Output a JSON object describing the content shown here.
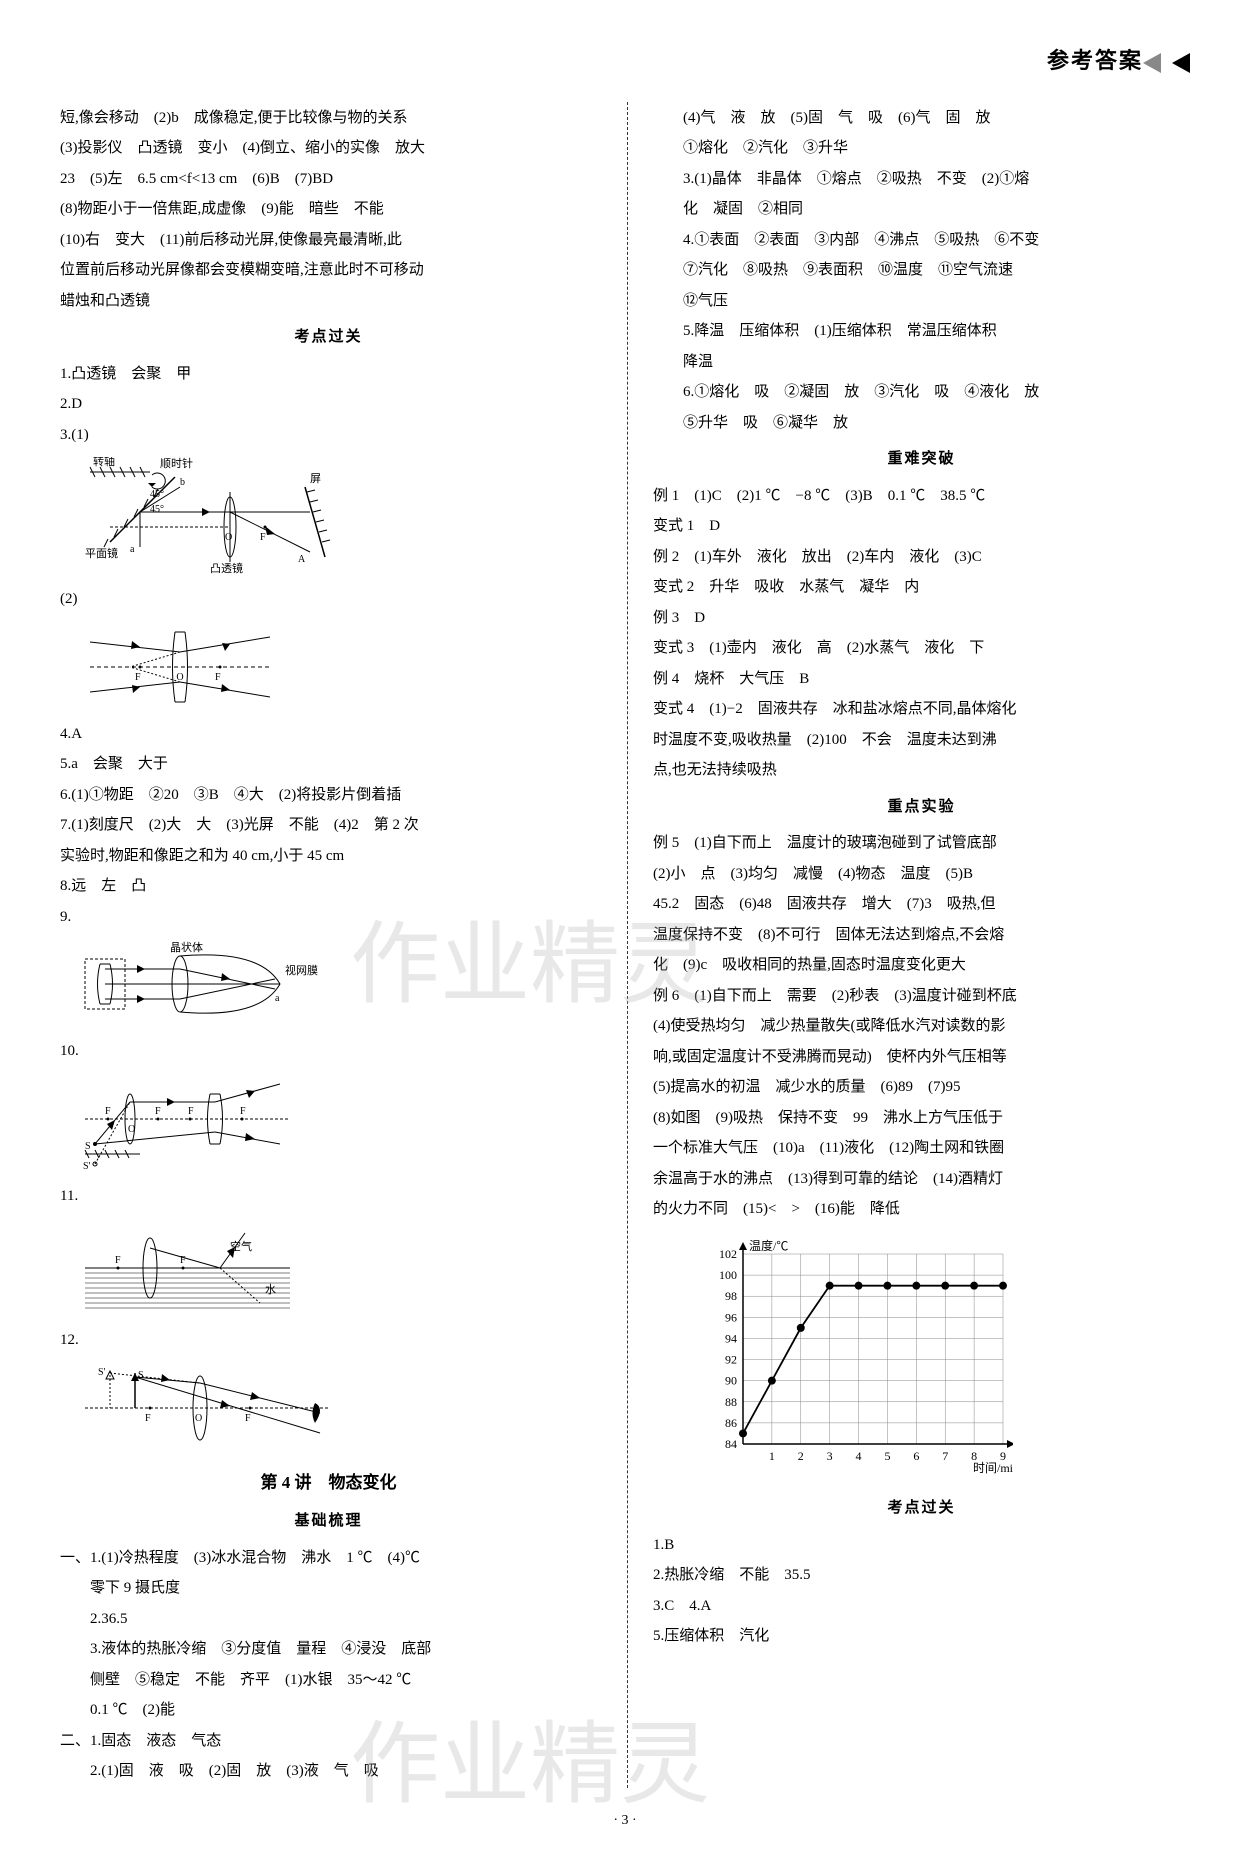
{
  "header": {
    "title": "参考答案"
  },
  "left": {
    "intro": [
      "短,像会移动　(2)b　成像稳定,便于比较像与物的关系",
      "(3)投影仪　凸透镜　变小　(4)倒立、缩小的实像　放大",
      "23　(5)左　6.5 cm<f<13 cm　(6)B　(7)BD",
      "(8)物距小于一倍焦距,成虚像　(9)能　暗些　不能",
      "(10)右　变大　(11)前后移动光屏,使像最亮最清晰,此",
      "位置前后移动光屏像都会变模糊变暗,注意此时不可移动",
      "蜡烛和凸透镜"
    ],
    "section1": "考点过关",
    "items1": [
      "1.凸透镜　会聚　甲",
      "2.D",
      "3.(1)",
      "",
      "(2)",
      "",
      "4.A",
      "5.a　会聚　大于",
      "6.(1)①物距　②20　③B　④大　(2)将投影片倒着插",
      "7.(1)刻度尺　(2)大　大　(3)光屏　不能　(4)2　第 2 次",
      "实验时,物距和像距之和为 40 cm,小于 45 cm",
      "8.远　左　凸",
      "9.",
      "",
      "10.",
      "",
      "11.",
      "",
      "12.",
      ""
    ],
    "chapter": "第 4 讲　物态变化",
    "section2": "基础梳理",
    "items2": [
      "一、1.(1)冷热程度　(3)冰水混合物　沸水　1 ℃　(4)℃",
      "零下 9 摄氏度",
      "2.36.5",
      "3.液体的热胀冷缩　③分度值　量程　④浸没　底部",
      "侧壁　⑤稳定　不能　齐平　(1)水银　35～42 ℃",
      "0.1 ℃　(2)能",
      "二、1.固态　液态　气态",
      "2.(1)固　液　吸　(2)固　放　(3)液　气　吸"
    ]
  },
  "right": {
    "intro": [
      "(4)气　液　放　(5)固　气　吸　(6)气　固　放",
      "①熔化　②汽化　③升华",
      "3.(1)晶体　非晶体　①熔点　②吸热　不变　(2)①熔",
      "化　凝固　②相同",
      "4.①表面　②表面　③内部　④沸点　⑤吸热　⑥不变",
      "⑦汽化　⑧吸热　⑨表面积　⑩温度　⑪空气流速",
      "⑫气压",
      "5.降温　压缩体积　(1)压缩体积　常温压缩体积",
      "降温",
      "6.①熔化　吸　②凝固　放　③汽化　吸　④液化　放",
      "⑤升华　吸　⑥凝华　放"
    ],
    "section1": "重难突破",
    "items1": [
      "例 1　(1)C　(2)1 ℃　−8 ℃　(3)B　0.1 ℃　38.5 ℃",
      "变式 1　D",
      "例 2　(1)车外　液化　放出　(2)车内　液化　(3)C",
      "变式 2　升华　吸收　水蒸气　凝华　内",
      "例 3　D",
      "变式 3　(1)壶内　液化　高　(2)水蒸气　液化　下",
      "例 4　烧杯　大气压　B",
      "变式 4　(1)−2　固液共存　冰和盐冰熔点不同,晶体熔化",
      "时温度不变,吸收热量　(2)100　不会　温度未达到沸",
      "点,也无法持续吸热"
    ],
    "section2": "重点实验",
    "items2": [
      "例 5　(1)自下而上　温度计的玻璃泡碰到了试管底部",
      "(2)小　点　(3)均匀　减慢　(4)物态　温度　(5)B",
      "45.2　固态　(6)48　固液共存　增大　(7)3　吸热,但",
      "温度保持不变　(8)不可行　固体无法达到熔点,不会熔",
      "化　(9)c　吸收相同的热量,固态时温度变化更大",
      "例 6　(1)自下而上　需要　(2)秒表　(3)温度计碰到杯底",
      "(4)使受热均匀　减少热量散失(或降低水汽对读数的影",
      "响,或固定温度计不受沸腾而晃动)　使杯内外气压相等",
      "(5)提高水的初温　减少水的质量　(6)89　(7)95",
      "(8)如图　(9)吸热　保持不变　99　沸水上方气压低于",
      "一个标准大气压　(10)a　(11)液化　(12)陶土网和铁圈",
      "余温高于水的沸点　(13)得到可靠的结论　(14)酒精灯",
      "的火力不同　(15)<　>　(16)能　降低"
    ],
    "chart": {
      "type": "line",
      "title_y": "温度/℃",
      "title_x": "时间/min",
      "ylim": [
        84,
        102
      ],
      "ytick_step": 2,
      "yticks": [
        84,
        86,
        88,
        90,
        92,
        94,
        96,
        98,
        100,
        102
      ],
      "xlim": [
        0,
        9
      ],
      "xticks": [
        1,
        2,
        3,
        4,
        5,
        6,
        7,
        8,
        9
      ],
      "data_x": [
        0,
        1,
        2,
        3,
        4,
        5,
        6,
        7,
        8,
        9
      ],
      "data_y": [
        85,
        90,
        95,
        99,
        99,
        99,
        99,
        99,
        99,
        99
      ],
      "line_color": "#000000",
      "marker": "circle",
      "marker_size": 4,
      "grid_color": "#888888",
      "background_color": "#ffffff",
      "fontsize": 12
    },
    "section3": "考点过关",
    "items3": [
      "1.B",
      "2.热胀冷缩　不能　35.5",
      "3.C　4.A",
      "5.压缩体积　汽化"
    ]
  },
  "pagenum": "· 3 ·",
  "watermarks": {
    "w1": "作业精灵",
    "w2": "作业精灵"
  },
  "diagram_labels": {
    "d3_1": {
      "zhuanzhou": "转轴",
      "shunshi": "顺时针",
      "ping": "屏",
      "pingmian": "平面镜",
      "tutou": "凸透镜",
      "ang45": "45°",
      "a": "a",
      "b": "b",
      "O": "O",
      "F": "F",
      "A": "A"
    },
    "d3_2": {
      "O": "O",
      "F": "F"
    },
    "d9": {
      "jingzhuang": "晶状体",
      "shiwang": "视网膜",
      "a": "a"
    },
    "d10": {
      "F": "F",
      "O": "O",
      "S": "S",
      "Sp": "S'"
    },
    "d11": {
      "F": "F",
      "kongqi": "空气",
      "shui": "水"
    },
    "d12": {
      "S": "S",
      "Sp": "S'",
      "F": "F",
      "O": "O"
    }
  }
}
